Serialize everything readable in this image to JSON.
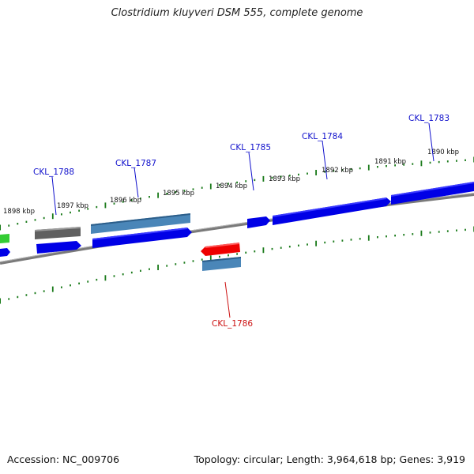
{
  "title": "Clostridium kluyveri DSM 555, complete genome",
  "footer": {
    "accession": "Accession: NC_009706",
    "summary": "Topology: circular; Length: 3,964,618 bp; Genes: 3,919"
  },
  "ticks": [
    {
      "label": "1898 kbp"
    },
    {
      "label": "1897 kbp"
    },
    {
      "label": "1896 kbp"
    },
    {
      "label": "1895 kbp"
    },
    {
      "label": "1894 kbp"
    },
    {
      "label": "1893 kbp"
    },
    {
      "label": "1892 kbp"
    },
    {
      "label": "1891 kbp"
    },
    {
      "label": "1890 kbp"
    }
  ],
  "gene_labels": [
    {
      "id": "CKL_1788",
      "label": "CKL_1788",
      "color": "#1010cc"
    },
    {
      "id": "CKL_1787",
      "label": "CKL_1787",
      "color": "#1010cc"
    },
    {
      "id": "CKL_1785",
      "label": "CKL_1785",
      "color": "#1010cc"
    },
    {
      "id": "CKL_1784",
      "label": "CKL_1784",
      "color": "#1010cc"
    },
    {
      "id": "CKL_1783",
      "label": "CKL_1783",
      "color": "#1010cc"
    },
    {
      "id": "CKL_1786",
      "label": "CKL_1786",
      "color": "#cc1010"
    }
  ],
  "colors": {
    "forward_gene": "#0000e6",
    "reverse_gene": "#ee0000",
    "steelblue_feature": "#4a86b8",
    "gray_feature": "#606060",
    "green_feature": "#33cc33",
    "tick_color": "#1a7a1a",
    "backbone": "#808080"
  }
}
